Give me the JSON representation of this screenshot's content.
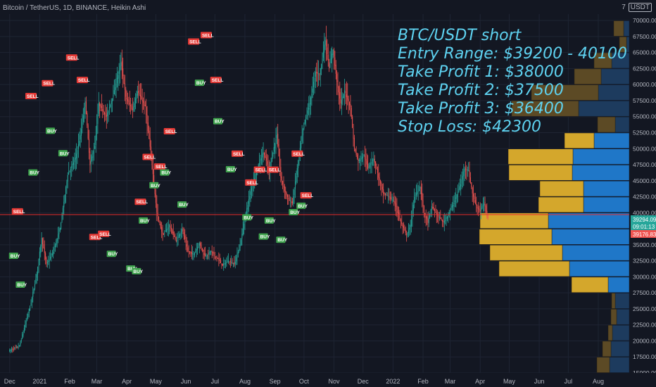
{
  "header": {
    "title": "Bitcoin / TetherUS, 1D, BINANCE, Heikin Ashi",
    "currency": "USDT",
    "currency_prefix": "7"
  },
  "annotations": [
    "BTC/USDT short",
    "Entry Range: $39200 - 40100",
    "Take Profit 1: $38000",
    "Take Profit 2: $37500",
    "Take Profit 3: $36400",
    "Stop Loss: $42300"
  ],
  "price_tags": {
    "current_price": "39294.09",
    "countdown": "09:01:13",
    "low_price": "39176.83"
  },
  "colors": {
    "background": "#131722",
    "up": "#26a69a",
    "down": "#ef5350",
    "grid": "#1e2433",
    "line": "#e52b2b",
    "vp_up": "#1f77c8",
    "vp_down": "#d4a72c",
    "vp_up_dim": "#1d3b5e",
    "vp_down_dim": "#5c4a25",
    "text": "#5ed2f0"
  },
  "chart_data": {
    "type": "candlestick",
    "style": "Heikin Ashi",
    "ylim": [
      15000,
      71000
    ],
    "yticks": [
      15000,
      17500,
      20000,
      22500,
      25000,
      27500,
      30000,
      32500,
      35000,
      37500,
      40000,
      42500,
      45000,
      47500,
      50000,
      52500,
      55000,
      57500,
      60000,
      62500,
      65000,
      67500,
      70000
    ],
    "y_tick_labels": [
      "15000.00",
      "17500.00",
      "20000.00",
      "22500.00",
      "25000.00",
      "27500.00",
      "30000.00",
      "32500.00",
      "35000.00",
      "37500.00",
      "40000.00",
      "42500.00",
      "45000.00",
      "47500.00",
      "50000.00",
      "52500.00",
      "55000.00",
      "57500.00",
      "60000.00",
      "62500.00",
      "65000.00",
      "67500.00",
      "70000.00"
    ],
    "x_labels": [
      "Dec",
      "2021",
      "Feb",
      "Mar",
      "Apr",
      "May",
      "Jun",
      "Jul",
      "Aug",
      "Sep",
      "Oct",
      "Nov",
      "Dec",
      "2022",
      "Feb",
      "Mar",
      "Apr",
      "May",
      "Jun",
      "Jul",
      "Aug"
    ],
    "x_label_days": [
      0,
      31,
      62,
      90,
      121,
      151,
      182,
      212,
      243,
      274,
      304,
      335,
      365,
      396,
      427,
      455,
      486,
      516,
      547,
      577,
      608
    ],
    "key_points": [
      [
        0,
        18500
      ],
      [
        10,
        19200
      ],
      [
        15,
        22000
      ],
      [
        22,
        26000
      ],
      [
        28,
        30500
      ],
      [
        33,
        36000
      ],
      [
        38,
        32000
      ],
      [
        44,
        33500
      ],
      [
        52,
        37500
      ],
      [
        60,
        46000
      ],
      [
        68,
        48500
      ],
      [
        73,
        52000
      ],
      [
        78,
        57500
      ],
      [
        83,
        47500
      ],
      [
        88,
        50500
      ],
      [
        92,
        57000
      ],
      [
        100,
        55000
      ],
      [
        108,
        59000
      ],
      [
        115,
        63500
      ],
      [
        120,
        58000
      ],
      [
        127,
        56000
      ],
      [
        132,
        59000
      ],
      [
        140,
        56500
      ],
      [
        146,
        49000
      ],
      [
        152,
        40000
      ],
      [
        158,
        36500
      ],
      [
        165,
        38000
      ],
      [
        172,
        35500
      ],
      [
        178,
        37500
      ],
      [
        184,
        34000
      ],
      [
        190,
        33500
      ],
      [
        196,
        35200
      ],
      [
        202,
        33200
      ],
      [
        208,
        34000
      ],
      [
        214,
        33000
      ],
      [
        220,
        31800
      ],
      [
        226,
        32500
      ],
      [
        232,
        32000
      ],
      [
        238,
        35000
      ],
      [
        244,
        40000
      ],
      [
        250,
        44000
      ],
      [
        256,
        47000
      ],
      [
        262,
        49500
      ],
      [
        268,
        46500
      ],
      [
        272,
        49500
      ],
      [
        276,
        52200
      ],
      [
        280,
        45500
      ],
      [
        284,
        43500
      ],
      [
        288,
        42000
      ],
      [
        292,
        41500
      ],
      [
        298,
        48000
      ],
      [
        304,
        54000
      ],
      [
        310,
        57000
      ],
      [
        316,
        62000
      ],
      [
        320,
        61500
      ],
      [
        326,
        67000
      ],
      [
        330,
        62500
      ],
      [
        334,
        65500
      ],
      [
        338,
        60500
      ],
      [
        342,
        57000
      ],
      [
        346,
        59000
      ],
      [
        352,
        56500
      ],
      [
        356,
        50000
      ],
      [
        360,
        48000
      ],
      [
        366,
        49000
      ],
      [
        370,
        47000
      ],
      [
        376,
        48500
      ],
      [
        382,
        45000
      ],
      [
        386,
        43000
      ],
      [
        392,
        42500
      ],
      [
        398,
        41500
      ],
      [
        404,
        38500
      ],
      [
        410,
        36500
      ],
      [
        414,
        38000
      ],
      [
        418,
        42500
      ],
      [
        424,
        44000
      ],
      [
        428,
        40000
      ],
      [
        432,
        38500
      ],
      [
        436,
        41000
      ],
      [
        442,
        39500
      ],
      [
        448,
        38500
      ],
      [
        454,
        40000
      ],
      [
        460,
        42000
      ],
      [
        466,
        44500
      ],
      [
        470,
        47000
      ],
      [
        474,
        46500
      ],
      [
        478,
        43000
      ],
      [
        482,
        41000
      ],
      [
        486,
        40300
      ],
      [
        490,
        41500
      ],
      [
        494,
        39200
      ]
    ],
    "signals": [
      {
        "label": "SELL",
        "day": 8,
        "price": 39500,
        "pos": "above"
      },
      {
        "label": "BUY",
        "day": 4,
        "price": 34000,
        "pos": "below"
      },
      {
        "label": "BUY",
        "day": 11,
        "price": 29500,
        "pos": "below"
      },
      {
        "label": "SELL",
        "day": 22,
        "price": 57500,
        "pos": "above"
      },
      {
        "label": "BUY",
        "day": 24,
        "price": 47000,
        "pos": "below"
      },
      {
        "label": "SELL",
        "day": 39,
        "price": 59500,
        "pos": "above"
      },
      {
        "label": "BUY",
        "day": 42,
        "price": 53500,
        "pos": "below"
      },
      {
        "label": "BUY",
        "day": 55,
        "price": 50000,
        "pos": "below"
      },
      {
        "label": "SELL",
        "day": 64,
        "price": 63500,
        "pos": "above"
      },
      {
        "label": "SELL",
        "day": 75,
        "price": 60000,
        "pos": "above"
      },
      {
        "label": "SELL",
        "day": 88,
        "price": 35500,
        "pos": "above"
      },
      {
        "label": "SELL",
        "day": 97,
        "price": 36000,
        "pos": "above"
      },
      {
        "label": "BUY",
        "day": 105,
        "price": 34300,
        "pos": "below"
      },
      {
        "label": "BUY",
        "day": 125,
        "price": 32000,
        "pos": "below"
      },
      {
        "label": "BUY",
        "day": 131,
        "price": 31600,
        "pos": "below"
      },
      {
        "label": "SELL",
        "day": 135,
        "price": 41000,
        "pos": "above"
      },
      {
        "label": "BUY",
        "day": 138,
        "price": 39500,
        "pos": "below"
      },
      {
        "label": "SELL",
        "day": 143,
        "price": 48000,
        "pos": "above"
      },
      {
        "label": "BUY",
        "day": 149,
        "price": 45000,
        "pos": "below"
      },
      {
        "label": "SELL",
        "day": 155,
        "price": 46500,
        "pos": "above"
      },
      {
        "label": "BUY",
        "day": 160,
        "price": 47000,
        "pos": "below"
      },
      {
        "label": "SELL",
        "day": 165,
        "price": 52000,
        "pos": "above"
      },
      {
        "label": "BUY",
        "day": 178,
        "price": 42000,
        "pos": "below"
      },
      {
        "label": "SELL",
        "day": 190,
        "price": 66000,
        "pos": "above"
      },
      {
        "label": "BUY",
        "day": 196,
        "price": 61000,
        "pos": "below"
      },
      {
        "label": "SELL",
        "day": 203,
        "price": 67000,
        "pos": "above"
      },
      {
        "label": "SELL",
        "day": 213,
        "price": 60000,
        "pos": "above"
      },
      {
        "label": "BUY",
        "day": 215,
        "price": 55000,
        "pos": "below"
      },
      {
        "label": "SELL",
        "day": 235,
        "price": 48500,
        "pos": "above"
      },
      {
        "label": "BUY",
        "day": 228,
        "price": 47500,
        "pos": "below"
      },
      {
        "label": "SELL",
        "day": 249,
        "price": 44000,
        "pos": "above"
      },
      {
        "label": "BUY",
        "day": 245,
        "price": 40000,
        "pos": "below"
      },
      {
        "label": "SELL",
        "day": 258,
        "price": 46000,
        "pos": "above"
      },
      {
        "label": "BUY",
        "day": 262,
        "price": 37000,
        "pos": "below"
      },
      {
        "label": "SELL",
        "day": 272,
        "price": 46000,
        "pos": "above"
      },
      {
        "label": "BUY",
        "day": 268,
        "price": 39500,
        "pos": "below"
      },
      {
        "label": "BUY",
        "day": 280,
        "price": 36500,
        "pos": "below"
      },
      {
        "label": "SELL",
        "day": 297,
        "price": 48500,
        "pos": "above"
      },
      {
        "label": "BUY",
        "day": 293,
        "price": 40800,
        "pos": "below"
      },
      {
        "label": "SELL",
        "day": 306,
        "price": 42000,
        "pos": "above"
      },
      {
        "label": "BUY",
        "day": 301,
        "price": 41800,
        "pos": "below"
      }
    ],
    "horizontal_line": 39700,
    "volume_profile": [
      {
        "price": 68750,
        "up": 8,
        "down": 14,
        "dim": true
      },
      {
        "price": 66250,
        "up": 4,
        "down": 10,
        "dim": true
      },
      {
        "price": 63750,
        "up": 25,
        "down": 25,
        "dim": true
      },
      {
        "price": 61250,
        "up": 40,
        "down": 38,
        "dim": true
      },
      {
        "price": 58750,
        "up": 44,
        "down": 95,
        "dim": true
      },
      {
        "price": 56250,
        "up": 72,
        "down": 95,
        "dim": true
      },
      {
        "price": 53750,
        "up": 20,
        "down": 25,
        "dim": true
      },
      {
        "price": 51250,
        "up": 50,
        "down": 42,
        "dim": false
      },
      {
        "price": 48750,
        "up": 80,
        "down": 92,
        "dim": false
      },
      {
        "price": 46250,
        "up": 81,
        "down": 90,
        "dim": false
      },
      {
        "price": 43750,
        "up": 65,
        "down": 62,
        "dim": false
      },
      {
        "price": 41250,
        "up": 65,
        "down": 64,
        "dim": false
      },
      {
        "price": 38750,
        "up": 115,
        "down": 97,
        "dim": false
      },
      {
        "price": 36250,
        "up": 110,
        "down": 103,
        "dim": false
      },
      {
        "price": 33750,
        "up": 95,
        "down": 103,
        "dim": false
      },
      {
        "price": 31250,
        "up": 85,
        "down": 100,
        "dim": false
      },
      {
        "price": 28750,
        "up": 30,
        "down": 52,
        "dim": false
      },
      {
        "price": 26250,
        "up": 20,
        "down": 5,
        "dim": true
      },
      {
        "price": 23750,
        "up": 18,
        "down": 8,
        "dim": true
      },
      {
        "price": 21250,
        "up": 24,
        "down": 6,
        "dim": true
      },
      {
        "price": 18750,
        "up": 26,
        "down": 12,
        "dim": true
      },
      {
        "price": 16250,
        "up": 28,
        "down": 18,
        "dim": true
      }
    ]
  }
}
